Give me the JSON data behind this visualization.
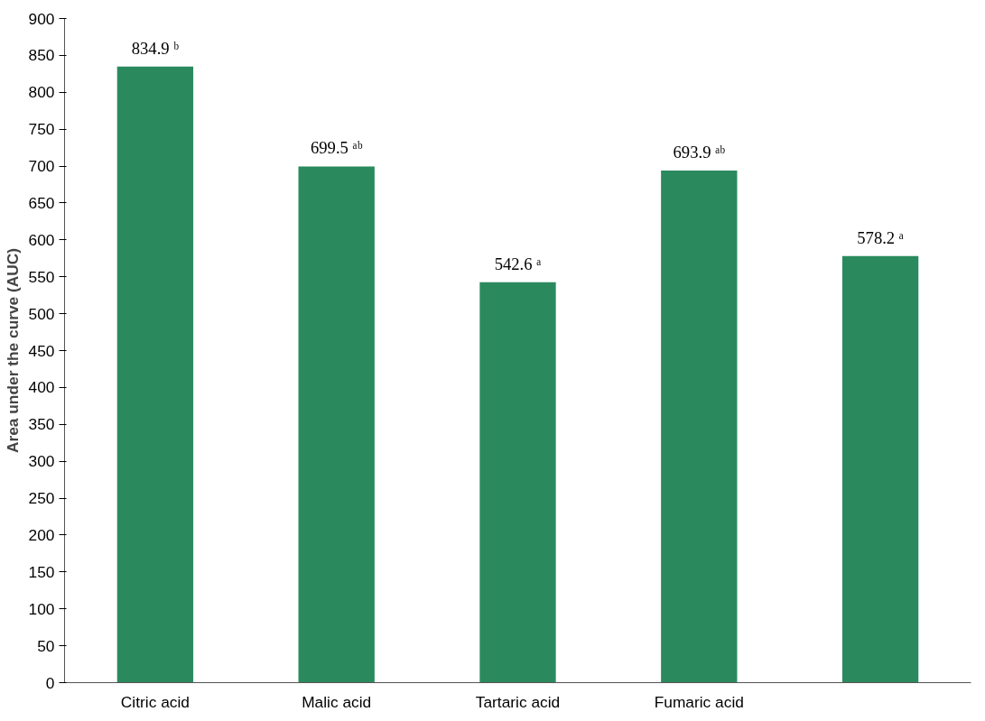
{
  "chart_data": {
    "type": "bar",
    "ylabel": "Area under the curve (AUC)",
    "categories": [
      "Citric acid",
      "Malic acid",
      "Tartaric acid",
      "Fumaric acid",
      null
    ],
    "values": [
      834.9,
      699.5,
      542.6,
      693.9,
      578.2
    ],
    "value_labels": [
      "834.9 ᵇ",
      "699.5 ᵃᵇ",
      "542.6 ᵃ",
      "693.9 ᵃᵇ",
      "578.2 ᵃ"
    ],
    "color": "#2a8a5e",
    "ylim": [
      0,
      900
    ],
    "yticks": [
      0,
      50,
      100,
      150,
      200,
      250,
      300,
      350,
      400,
      450,
      500,
      550,
      600,
      650,
      700,
      750,
      800,
      850,
      900
    ],
    "grid": false
  }
}
